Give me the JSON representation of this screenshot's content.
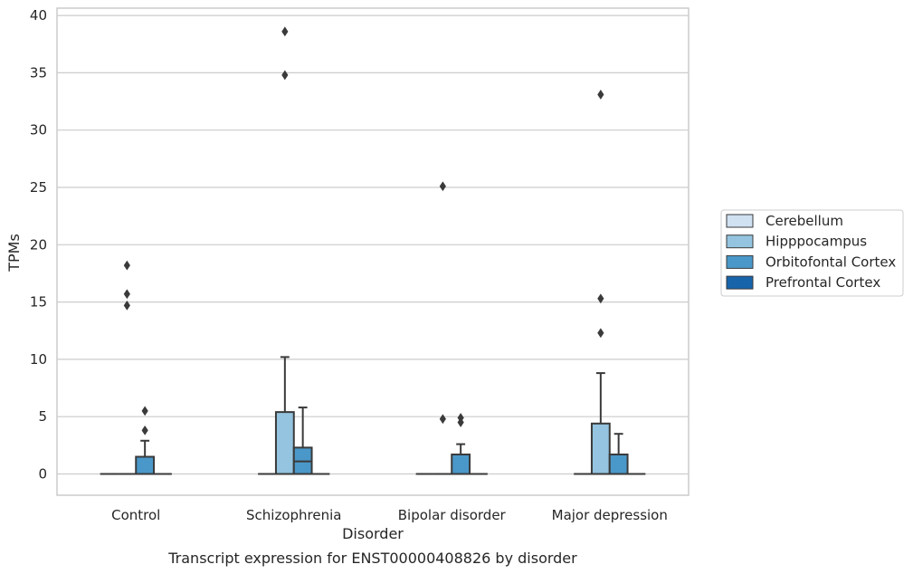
{
  "chart_data": {
    "type": "box",
    "caption": "Transcript expression for ENST00000408826 by disorder",
    "xlabel": "Disorder",
    "ylabel": "TPMs",
    "categories": [
      "Control",
      "Schizophrenia",
      "Bipolar disorder",
      "Major depression"
    ],
    "ylim": [
      -1.8,
      40.6
    ],
    "yticks": [
      0,
      5,
      10,
      15,
      20,
      25,
      30,
      35,
      40
    ],
    "grid": true,
    "legend_position": "right",
    "series": [
      {
        "name": "Cerebellum",
        "color": "#d0e1f2",
        "boxes": [
          {
            "q1": 0,
            "median": 0,
            "q3": 0,
            "whisker_low": 0,
            "whisker_high": 0,
            "outliers": []
          },
          {
            "q1": 0,
            "median": 0,
            "q3": 0,
            "whisker_low": 0,
            "whisker_high": 0,
            "outliers": []
          },
          {
            "q1": 0,
            "median": 0,
            "q3": 0,
            "whisker_low": 0,
            "whisker_high": 0,
            "outliers": []
          },
          {
            "q1": 0,
            "median": 0,
            "q3": 0,
            "whisker_low": 0,
            "whisker_high": 0,
            "outliers": []
          }
        ]
      },
      {
        "name": "Hipppocampus",
        "color": "#94c4df",
        "boxes": [
          {
            "q1": 0,
            "median": 0,
            "q3": 0,
            "whisker_low": 0,
            "whisker_high": 0,
            "outliers": [
              14.7,
              15.7,
              18.2
            ]
          },
          {
            "q1": 0,
            "median": 0,
            "q3": 5.4,
            "whisker_low": 0,
            "whisker_high": 10.2,
            "outliers": [
              34.8,
              38.6
            ]
          },
          {
            "q1": 0,
            "median": 0,
            "q3": 0,
            "whisker_low": 0,
            "whisker_high": 0,
            "outliers": [
              4.8,
              25.1
            ]
          },
          {
            "q1": 0,
            "median": 0,
            "q3": 4.4,
            "whisker_low": 0,
            "whisker_high": 8.8,
            "outliers": [
              12.3,
              15.3,
              33.1
            ]
          }
        ]
      },
      {
        "name": "Orbitofontal Cortex",
        "color": "#4a98c9",
        "boxes": [
          {
            "q1": 0,
            "median": 0,
            "q3": 1.5,
            "whisker_low": 0,
            "whisker_high": 2.9,
            "outliers": [
              3.8,
              5.5
            ]
          },
          {
            "q1": 0,
            "median": 1.1,
            "q3": 2.3,
            "whisker_low": 0,
            "whisker_high": 5.8,
            "outliers": []
          },
          {
            "q1": 0,
            "median": 0,
            "q3": 1.7,
            "whisker_low": 0,
            "whisker_high": 2.6,
            "outliers": [
              4.5,
              4.9
            ]
          },
          {
            "q1": 0,
            "median": 0,
            "q3": 1.7,
            "whisker_low": 0,
            "whisker_high": 3.5,
            "outliers": []
          }
        ]
      },
      {
        "name": "Prefrontal Cortex",
        "color": "#1764ab",
        "boxes": [
          {
            "q1": 0,
            "median": 0,
            "q3": 0,
            "whisker_low": 0,
            "whisker_high": 0,
            "outliers": []
          },
          {
            "q1": 0,
            "median": 0,
            "q3": 0,
            "whisker_low": 0,
            "whisker_high": 0,
            "outliers": []
          },
          {
            "q1": 0,
            "median": 0,
            "q3": 0,
            "whisker_low": 0,
            "whisker_high": 0,
            "outliers": []
          },
          {
            "q1": 0,
            "median": 0,
            "q3": 0,
            "whisker_low": 0,
            "whisker_high": 0,
            "outliers": []
          }
        ]
      }
    ]
  }
}
